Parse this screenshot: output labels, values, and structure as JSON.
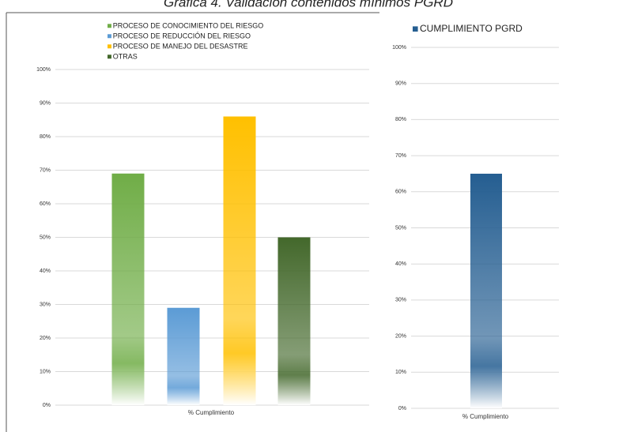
{
  "title": "Gráfica 4. Validación contenidos mínimos PGRD",
  "chart_data": [
    {
      "type": "bar",
      "categories": [
        "% Cumplimiento"
      ],
      "series": [
        {
          "name": "PROCESO DE CONOCIMIENTO DEL RIESGO",
          "color": "#70ad47",
          "values": [
            69
          ]
        },
        {
          "name": "PROCESO DE REDUCCIÓN DEL RIESGO",
          "color": "#5b9bd5",
          "values": [
            29
          ]
        },
        {
          "name": "PROCESO DE MANEJO DEL DESASTRE",
          "color": "#ffc000",
          "values": [
            86
          ]
        },
        {
          "name": "OTRAS",
          "color": "#43682b",
          "values": [
            50
          ]
        }
      ],
      "ylim": [
        0,
        100
      ],
      "yticks": [
        {
          "value": 0,
          "label": "0%"
        },
        {
          "value": 10,
          "label": "10%"
        },
        {
          "value": 20,
          "label": "20%"
        },
        {
          "value": 30,
          "label": "30%"
        },
        {
          "value": 40,
          "label": "40%"
        },
        {
          "value": 50,
          "label": "50%"
        },
        {
          "value": 60,
          "label": "60%"
        },
        {
          "value": 70,
          "label": "70%"
        },
        {
          "value": 80,
          "label": "80%"
        },
        {
          "value": 90,
          "label": "90%"
        },
        {
          "value": 100,
          "label": "100%"
        }
      ],
      "grid": true,
      "legend": "top"
    },
    {
      "type": "bar",
      "categories": [
        "% Cumplimiento"
      ],
      "series": [
        {
          "name": "CUMPLIMIENTO PGRD",
          "color": "#255e91",
          "values": [
            65
          ]
        }
      ],
      "ylim": [
        0,
        100
      ],
      "yticks": [
        {
          "value": 0,
          "label": "0%"
        },
        {
          "value": 10,
          "label": "10%"
        },
        {
          "value": 20,
          "label": "20%"
        },
        {
          "value": 30,
          "label": "30%"
        },
        {
          "value": 40,
          "label": "40%"
        },
        {
          "value": 50,
          "label": "50%"
        },
        {
          "value": 60,
          "label": "60%"
        },
        {
          "value": 70,
          "label": "70%"
        },
        {
          "value": 80,
          "label": "80%"
        },
        {
          "value": 90,
          "label": "90%"
        },
        {
          "value": 100,
          "label": "100%"
        }
      ],
      "grid": true,
      "legend": "top"
    }
  ]
}
